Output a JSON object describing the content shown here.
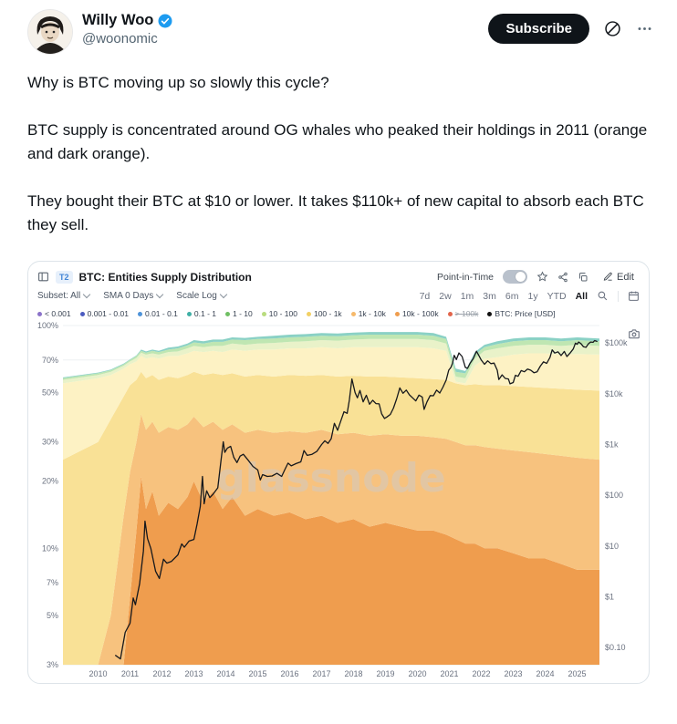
{
  "tweet": {
    "author": "Willy Woo",
    "handle": "@woonomic",
    "subscribe_label": "Subscribe",
    "paragraphs": [
      "Why is BTC moving up so slowly this cycle?",
      "BTC supply is concentrated around OG whales who peaked their holdings in 2011 (orange and dark orange).",
      "They bought their BTC at $10 or lower. It takes $110k+ of new capital to absorb each BTC they sell."
    ]
  },
  "chart": {
    "tag": "T2",
    "title": "BTC: Entities Supply Distribution",
    "point_in_time_label": "Point-in-Time",
    "edit_label": "Edit",
    "watermark": "glassnode",
    "controls": [
      {
        "label": "Subset: All"
      },
      {
        "label": "SMA 0 Days"
      },
      {
        "label": "Scale Log"
      }
    ],
    "ranges": [
      "7d",
      "2w",
      "1m",
      "3m",
      "6m",
      "1y",
      "YTD",
      "All"
    ],
    "active_range": "All",
    "legend": [
      {
        "label": "< 0.001",
        "color": "#8B72C9"
      },
      {
        "label": "0.001 - 0.01",
        "color": "#4B5BC0"
      },
      {
        "label": "0.01 - 0.1",
        "color": "#4E93D9"
      },
      {
        "label": "0.1 - 1",
        "color": "#3FAFA5"
      },
      {
        "label": "1 - 10",
        "color": "#6FBF63"
      },
      {
        "label": "10 - 100",
        "color": "#B9DC7E"
      },
      {
        "label": "100 - 1k",
        "color": "#F2D064"
      },
      {
        "label": "1k - 10k",
        "color": "#F6B96B"
      },
      {
        "label": "10k - 100k",
        "color": "#EF9D4E"
      },
      {
        "label": "> 100k",
        "color": "#E2654B",
        "disabled": true
      },
      {
        "label": "BTC: Price [USD]",
        "color": "#111111"
      }
    ]
  },
  "chart_data": {
    "type": "area",
    "stacked": true,
    "title": "BTC: Entities Supply Distribution",
    "description": "Share of BTC supply held by entities grouped by balance size (log % left axis) with BTC price overlay (log USD right axis). Band values are cumulative stack tops in percent of supply.",
    "x_axis": {
      "ticks": [
        2010,
        2011,
        2012,
        2013,
        2014,
        2015,
        2016,
        2017,
        2018,
        2019,
        2020,
        2021,
        2022,
        2023,
        2024,
        2025
      ],
      "range": [
        2008.9,
        2025.7
      ]
    },
    "left_axis": {
      "unit": "%",
      "scale": "log",
      "ticks": [
        100,
        70,
        50,
        30,
        20,
        10,
        7,
        5,
        3
      ]
    },
    "right_axis": {
      "scale": "log",
      "range": [
        0.046,
        220000
      ],
      "ticks": [
        {
          "label": "$100k",
          "value": 100000
        },
        {
          "label": "$10k",
          "value": 10000
        },
        {
          "label": "$1k",
          "value": 1000
        },
        {
          "label": "$100",
          "value": 100
        },
        {
          "label": "$10",
          "value": 10
        },
        {
          "label": "$1",
          "value": 1
        },
        {
          "label": "$0.10",
          "value": 0.1
        }
      ]
    },
    "stack_x": [
      2008.9,
      2010,
      2010.4,
      2010.8,
      2011,
      2011.2,
      2011.35,
      2011.5,
      2011.7,
      2011.9,
      2012.2,
      2012.5,
      2012.8,
      2013,
      2013.3,
      2013.6,
      2013.9,
      2014.2,
      2014.6,
      2015,
      2015.5,
      2016,
      2016.5,
      2017,
      2017.5,
      2018,
      2018.5,
      2019,
      2019.5,
      2020,
      2020.5,
      2020.9,
      2021.2,
      2021.5,
      2021.8,
      2022.1,
      2022.5,
      2023,
      2023.5,
      2024,
      2024.5,
      2025,
      2025.7
    ],
    "bands": [
      {
        "name": "10k - 100k",
        "fill": "#EF9D4E",
        "top_percent": [
          0.2,
          0.5,
          1.5,
          3,
          6,
          12,
          21,
          15,
          18,
          14,
          16,
          15,
          17,
          20,
          16,
          18,
          15,
          17,
          14,
          15,
          14,
          14.5,
          13.5,
          14,
          13,
          13.5,
          12.5,
          13,
          12.5,
          12,
          12,
          11.5,
          11,
          10.5,
          10.5,
          10,
          10,
          9.5,
          9,
          9,
          8.5,
          8,
          8
        ]
      },
      {
        "name": "1k - 10k",
        "fill": "#F7C27E",
        "top_percent": [
          1,
          2,
          5,
          14,
          22,
          30,
          40,
          34,
          37,
          33,
          35,
          34,
          36,
          39,
          35,
          37,
          34,
          36,
          33,
          34,
          33,
          33.5,
          33,
          34,
          32.5,
          33,
          32,
          32.5,
          32,
          32,
          31.5,
          31,
          30,
          29,
          29,
          28.5,
          28,
          27.5,
          27,
          26.5,
          26,
          25.5,
          25
        ]
      },
      {
        "name": "100 - 1k",
        "fill": "#F9E196",
        "top_percent": [
          25,
          30,
          38,
          48,
          54,
          57,
          62,
          58,
          60,
          57,
          59,
          58,
          60,
          62,
          60,
          61,
          60,
          61,
          59,
          60,
          59,
          60,
          59.5,
          60,
          59,
          59.5,
          59,
          59,
          58.5,
          58,
          57.5,
          57,
          55,
          54,
          54.5,
          54,
          54,
          53.5,
          53,
          52.5,
          52,
          51.5,
          51
        ]
      },
      {
        "name": "10 - 100",
        "fill": "#FDF2C4",
        "top_percent": [
          55,
          58,
          60,
          64,
          67,
          69,
          73,
          71,
          72,
          71,
          73,
          73,
          75,
          77,
          76,
          77,
          76,
          78,
          77,
          78,
          78,
          79,
          79,
          80,
          79,
          80,
          80,
          80,
          80,
          80,
          79,
          77,
          56,
          55,
          66,
          71,
          72,
          74,
          75,
          75,
          74,
          74.5,
          74
        ]
      },
      {
        "name": "1 - 10",
        "fill": "#E9F2C9",
        "top_percent": [
          57,
          60,
          62,
          66,
          69,
          71.5,
          75.5,
          74,
          75,
          74,
          76,
          76.5,
          79,
          81,
          80,
          81,
          81,
          83,
          82,
          83,
          83.5,
          84.5,
          85,
          86,
          85.5,
          86.5,
          87,
          87,
          87,
          87,
          86,
          83,
          59,
          58,
          71,
          77,
          79,
          81,
          82,
          82,
          81,
          82,
          81
        ]
      },
      {
        "name": "0.1 - 1",
        "fill": "#BFE6B2",
        "top_percent": [
          58,
          61,
          63,
          67,
          70,
          73,
          77,
          75.5,
          77,
          76,
          78,
          79,
          81.5,
          84,
          83,
          84.5,
          84.5,
          86.5,
          86,
          87,
          87.5,
          88.5,
          89,
          90,
          89.5,
          90.5,
          91,
          91,
          91,
          91,
          90,
          87,
          62,
          61,
          74,
          80,
          82.5,
          85,
          86,
          86,
          85,
          86,
          85
        ]
      },
      {
        "name": "0.01 - 0.1 and below",
        "fill": "#8AD1C5",
        "top_percent": [
          58.5,
          61.5,
          63.5,
          67.5,
          70.5,
          73.5,
          78,
          76.5,
          78,
          77,
          79.5,
          80.5,
          83,
          86,
          85,
          86.5,
          86.5,
          88.5,
          88,
          89,
          90,
          91,
          91.5,
          92.5,
          92,
          93,
          93.5,
          93.5,
          93.5,
          93.5,
          92.5,
          89,
          64,
          62.5,
          76,
          82,
          85,
          87.5,
          88.5,
          88.5,
          87.5,
          88.5,
          87.5
        ]
      }
    ],
    "price_series": {
      "name": "BTC: Price [USD]",
      "color": "#16181c",
      "points": [
        [
          2010.55,
          0.07
        ],
        [
          2010.7,
          0.06
        ],
        [
          2010.85,
          0.2
        ],
        [
          2011.0,
          0.3
        ],
        [
          2011.1,
          0.95
        ],
        [
          2011.17,
          0.7
        ],
        [
          2011.3,
          1.8
        ],
        [
          2011.42,
          8
        ],
        [
          2011.47,
          31
        ],
        [
          2011.55,
          14
        ],
        [
          2011.65,
          9
        ],
        [
          2011.8,
          3.2
        ],
        [
          2011.92,
          2.3
        ],
        [
          2012.05,
          5.5
        ],
        [
          2012.15,
          4.6
        ],
        [
          2012.3,
          5
        ],
        [
          2012.5,
          6.7
        ],
        [
          2012.62,
          11
        ],
        [
          2012.7,
          9.5
        ],
        [
          2012.85,
          12.5
        ],
        [
          2013.0,
          13.5
        ],
        [
          2013.1,
          27
        ],
        [
          2013.2,
          60
        ],
        [
          2013.27,
          235
        ],
        [
          2013.32,
          68
        ],
        [
          2013.4,
          122
        ],
        [
          2013.5,
          90
        ],
        [
          2013.6,
          105
        ],
        [
          2013.75,
          140
        ],
        [
          2013.85,
          480
        ],
        [
          2013.92,
          1130
        ],
        [
          2013.97,
          700
        ],
        [
          2014.05,
          850
        ],
        [
          2014.15,
          920
        ],
        [
          2014.25,
          560
        ],
        [
          2014.35,
          440
        ],
        [
          2014.45,
          590
        ],
        [
          2014.55,
          640
        ],
        [
          2014.7,
          490
        ],
        [
          2014.85,
          370
        ],
        [
          2015.0,
          315
        ],
        [
          2015.08,
          200
        ],
        [
          2015.15,
          255
        ],
        [
          2015.3,
          235
        ],
        [
          2015.45,
          240
        ],
        [
          2015.6,
          270
        ],
        [
          2015.75,
          235
        ],
        [
          2015.85,
          320
        ],
        [
          2015.95,
          430
        ],
        [
          2016.05,
          380
        ],
        [
          2016.2,
          420
        ],
        [
          2016.35,
          455
        ],
        [
          2016.45,
          760
        ],
        [
          2016.55,
          610
        ],
        [
          2016.7,
          640
        ],
        [
          2016.85,
          730
        ],
        [
          2017.0,
          1000
        ],
        [
          2017.1,
          1180
        ],
        [
          2017.2,
          1050
        ],
        [
          2017.3,
          1300
        ],
        [
          2017.4,
          2600
        ],
        [
          2017.5,
          1900
        ],
        [
          2017.6,
          2900
        ],
        [
          2017.7,
          4400
        ],
        [
          2017.8,
          4100
        ],
        [
          2017.87,
          7500
        ],
        [
          2017.95,
          19500
        ],
        [
          2018.05,
          10500
        ],
        [
          2018.12,
          8300
        ],
        [
          2018.2,
          11600
        ],
        [
          2018.3,
          6900
        ],
        [
          2018.4,
          9300
        ],
        [
          2018.5,
          6200
        ],
        [
          2018.6,
          7400
        ],
        [
          2018.7,
          6400
        ],
        [
          2018.8,
          6300
        ],
        [
          2018.88,
          4000
        ],
        [
          2018.97,
          3250
        ],
        [
          2019.05,
          3500
        ],
        [
          2019.15,
          3900
        ],
        [
          2019.25,
          5200
        ],
        [
          2019.35,
          7900
        ],
        [
          2019.45,
          13000
        ],
        [
          2019.55,
          10200
        ],
        [
          2019.65,
          11800
        ],
        [
          2019.75,
          9500
        ],
        [
          2019.85,
          8300
        ],
        [
          2019.95,
          7200
        ],
        [
          2020.05,
          9400
        ],
        [
          2020.15,
          8600
        ],
        [
          2020.21,
          4900
        ],
        [
          2020.3,
          6900
        ],
        [
          2020.4,
          9200
        ],
        [
          2020.5,
          9100
        ],
        [
          2020.6,
          11800
        ],
        [
          2020.7,
          10300
        ],
        [
          2020.8,
          13500
        ],
        [
          2020.9,
          18500
        ],
        [
          2020.98,
          29000
        ],
        [
          2021.05,
          33000
        ],
        [
          2021.1,
          40000
        ],
        [
          2021.15,
          57000
        ],
        [
          2021.22,
          47000
        ],
        [
          2021.3,
          63500
        ],
        [
          2021.4,
          54000
        ],
        [
          2021.5,
          33000
        ],
        [
          2021.57,
          31500
        ],
        [
          2021.65,
          40000
        ],
        [
          2021.75,
          49000
        ],
        [
          2021.85,
          68500
        ],
        [
          2021.92,
          57000
        ],
        [
          2022.0,
          46000
        ],
        [
          2022.1,
          38000
        ],
        [
          2022.2,
          44500
        ],
        [
          2022.3,
          39000
        ],
        [
          2022.4,
          40000
        ],
        [
          2022.5,
          29000
        ],
        [
          2022.55,
          19000
        ],
        [
          2022.65,
          23500
        ],
        [
          2022.75,
          20000
        ],
        [
          2022.85,
          19500
        ],
        [
          2022.9,
          15700
        ],
        [
          2023.0,
          16600
        ],
        [
          2023.07,
          23000
        ],
        [
          2023.15,
          22000
        ],
        [
          2023.25,
          28500
        ],
        [
          2023.35,
          27000
        ],
        [
          2023.45,
          30500
        ],
        [
          2023.55,
          29000
        ],
        [
          2023.65,
          25800
        ],
        [
          2023.75,
          27000
        ],
        [
          2023.85,
          35000
        ],
        [
          2023.95,
          42500
        ],
        [
          2024.05,
          39500
        ],
        [
          2024.15,
          52000
        ],
        [
          2024.22,
          73000
        ],
        [
          2024.3,
          63000
        ],
        [
          2024.4,
          67000
        ],
        [
          2024.5,
          56500
        ],
        [
          2024.6,
          68000
        ],
        [
          2024.68,
          54000
        ],
        [
          2024.78,
          63000
        ],
        [
          2024.88,
          76000
        ],
        [
          2024.95,
          99000
        ],
        [
          2025.0,
          94000
        ],
        [
          2025.05,
          104000
        ],
        [
          2025.12,
          97000
        ],
        [
          2025.2,
          84000
        ],
        [
          2025.28,
          82000
        ],
        [
          2025.35,
          95000
        ],
        [
          2025.42,
          104000
        ],
        [
          2025.5,
          103000
        ],
        [
          2025.55,
          111000
        ],
        [
          2025.62,
          107000
        ]
      ]
    }
  }
}
